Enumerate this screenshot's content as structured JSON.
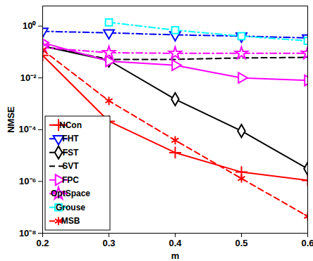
{
  "chart_data": {
    "type": "line",
    "x_label": "m",
    "y_label": "NMSE",
    "log": "y",
    "x": [
      0.2,
      0.3,
      0.4,
      0.5,
      0.6
    ],
    "xlim": [
      0.2,
      0.6
    ],
    "xticks": [
      0.2,
      0.3,
      0.4,
      0.5,
      0.6
    ],
    "ylim": [
      1e-08,
      6
    ],
    "yticks": [
      {
        "value": 1e-08,
        "label": "10⁻⁸"
      },
      {
        "value": 1e-06,
        "label": "10⁻⁶"
      },
      {
        "value": 0.0001,
        "label": "10⁻⁴"
      },
      {
        "value": 0.01,
        "label": "10⁻²"
      },
      {
        "value": 1,
        "label": "10⁰"
      }
    ],
    "grid": false,
    "legend": "lower left",
    "series": [
      {
        "name": "NCon",
        "color": "#ff0000",
        "marker": "plus",
        "line_style": "solid",
        "values": [
          0.074,
          0.00021,
          1.3e-05,
          2.3e-06,
          1.1e-06
        ]
      },
      {
        "name": "FHT",
        "color": "#0000ff",
        "marker": "triangle-down",
        "line_style": "dash-dot",
        "values": [
          0.63,
          0.55,
          0.46,
          0.41,
          0.35
        ]
      },
      {
        "name": "FST",
        "color": "#000000",
        "marker": "diamond",
        "line_style": "solid",
        "values": [
          0.17,
          0.047,
          0.0015,
          8.9e-05,
          3.1e-06
        ]
      },
      {
        "name": "SVT",
        "color": "#000000",
        "marker": "none",
        "line_style": "dashed",
        "values": [
          0.17,
          0.052,
          0.052,
          0.059,
          0.062
        ]
      },
      {
        "name": "FPC",
        "color": "#ff00ff",
        "marker": "triangle-right",
        "line_style": "solid",
        "values": [
          0.23,
          0.044,
          0.031,
          0.01,
          0.008
        ]
      },
      {
        "name": "OptSpace",
        "color": "#ff00ff",
        "marker": "hexagram",
        "line_style": "dash-dot",
        "values": [
          0.15,
          0.094,
          0.089,
          0.089,
          0.089
        ]
      },
      {
        "name": "Grouse",
        "color": "#00ffff",
        "marker": "square",
        "line_style": "dash-dot",
        "values": [
          null,
          1.4,
          0.7,
          0.41,
          0.27
        ]
      },
      {
        "name": "MSB",
        "color": "#ff0000",
        "marker": "asterisk",
        "line_style": "dashed",
        "values": [
          0.12,
          0.0013,
          3.9e-05,
          1.3e-06,
          4.5e-08
        ]
      }
    ]
  }
}
